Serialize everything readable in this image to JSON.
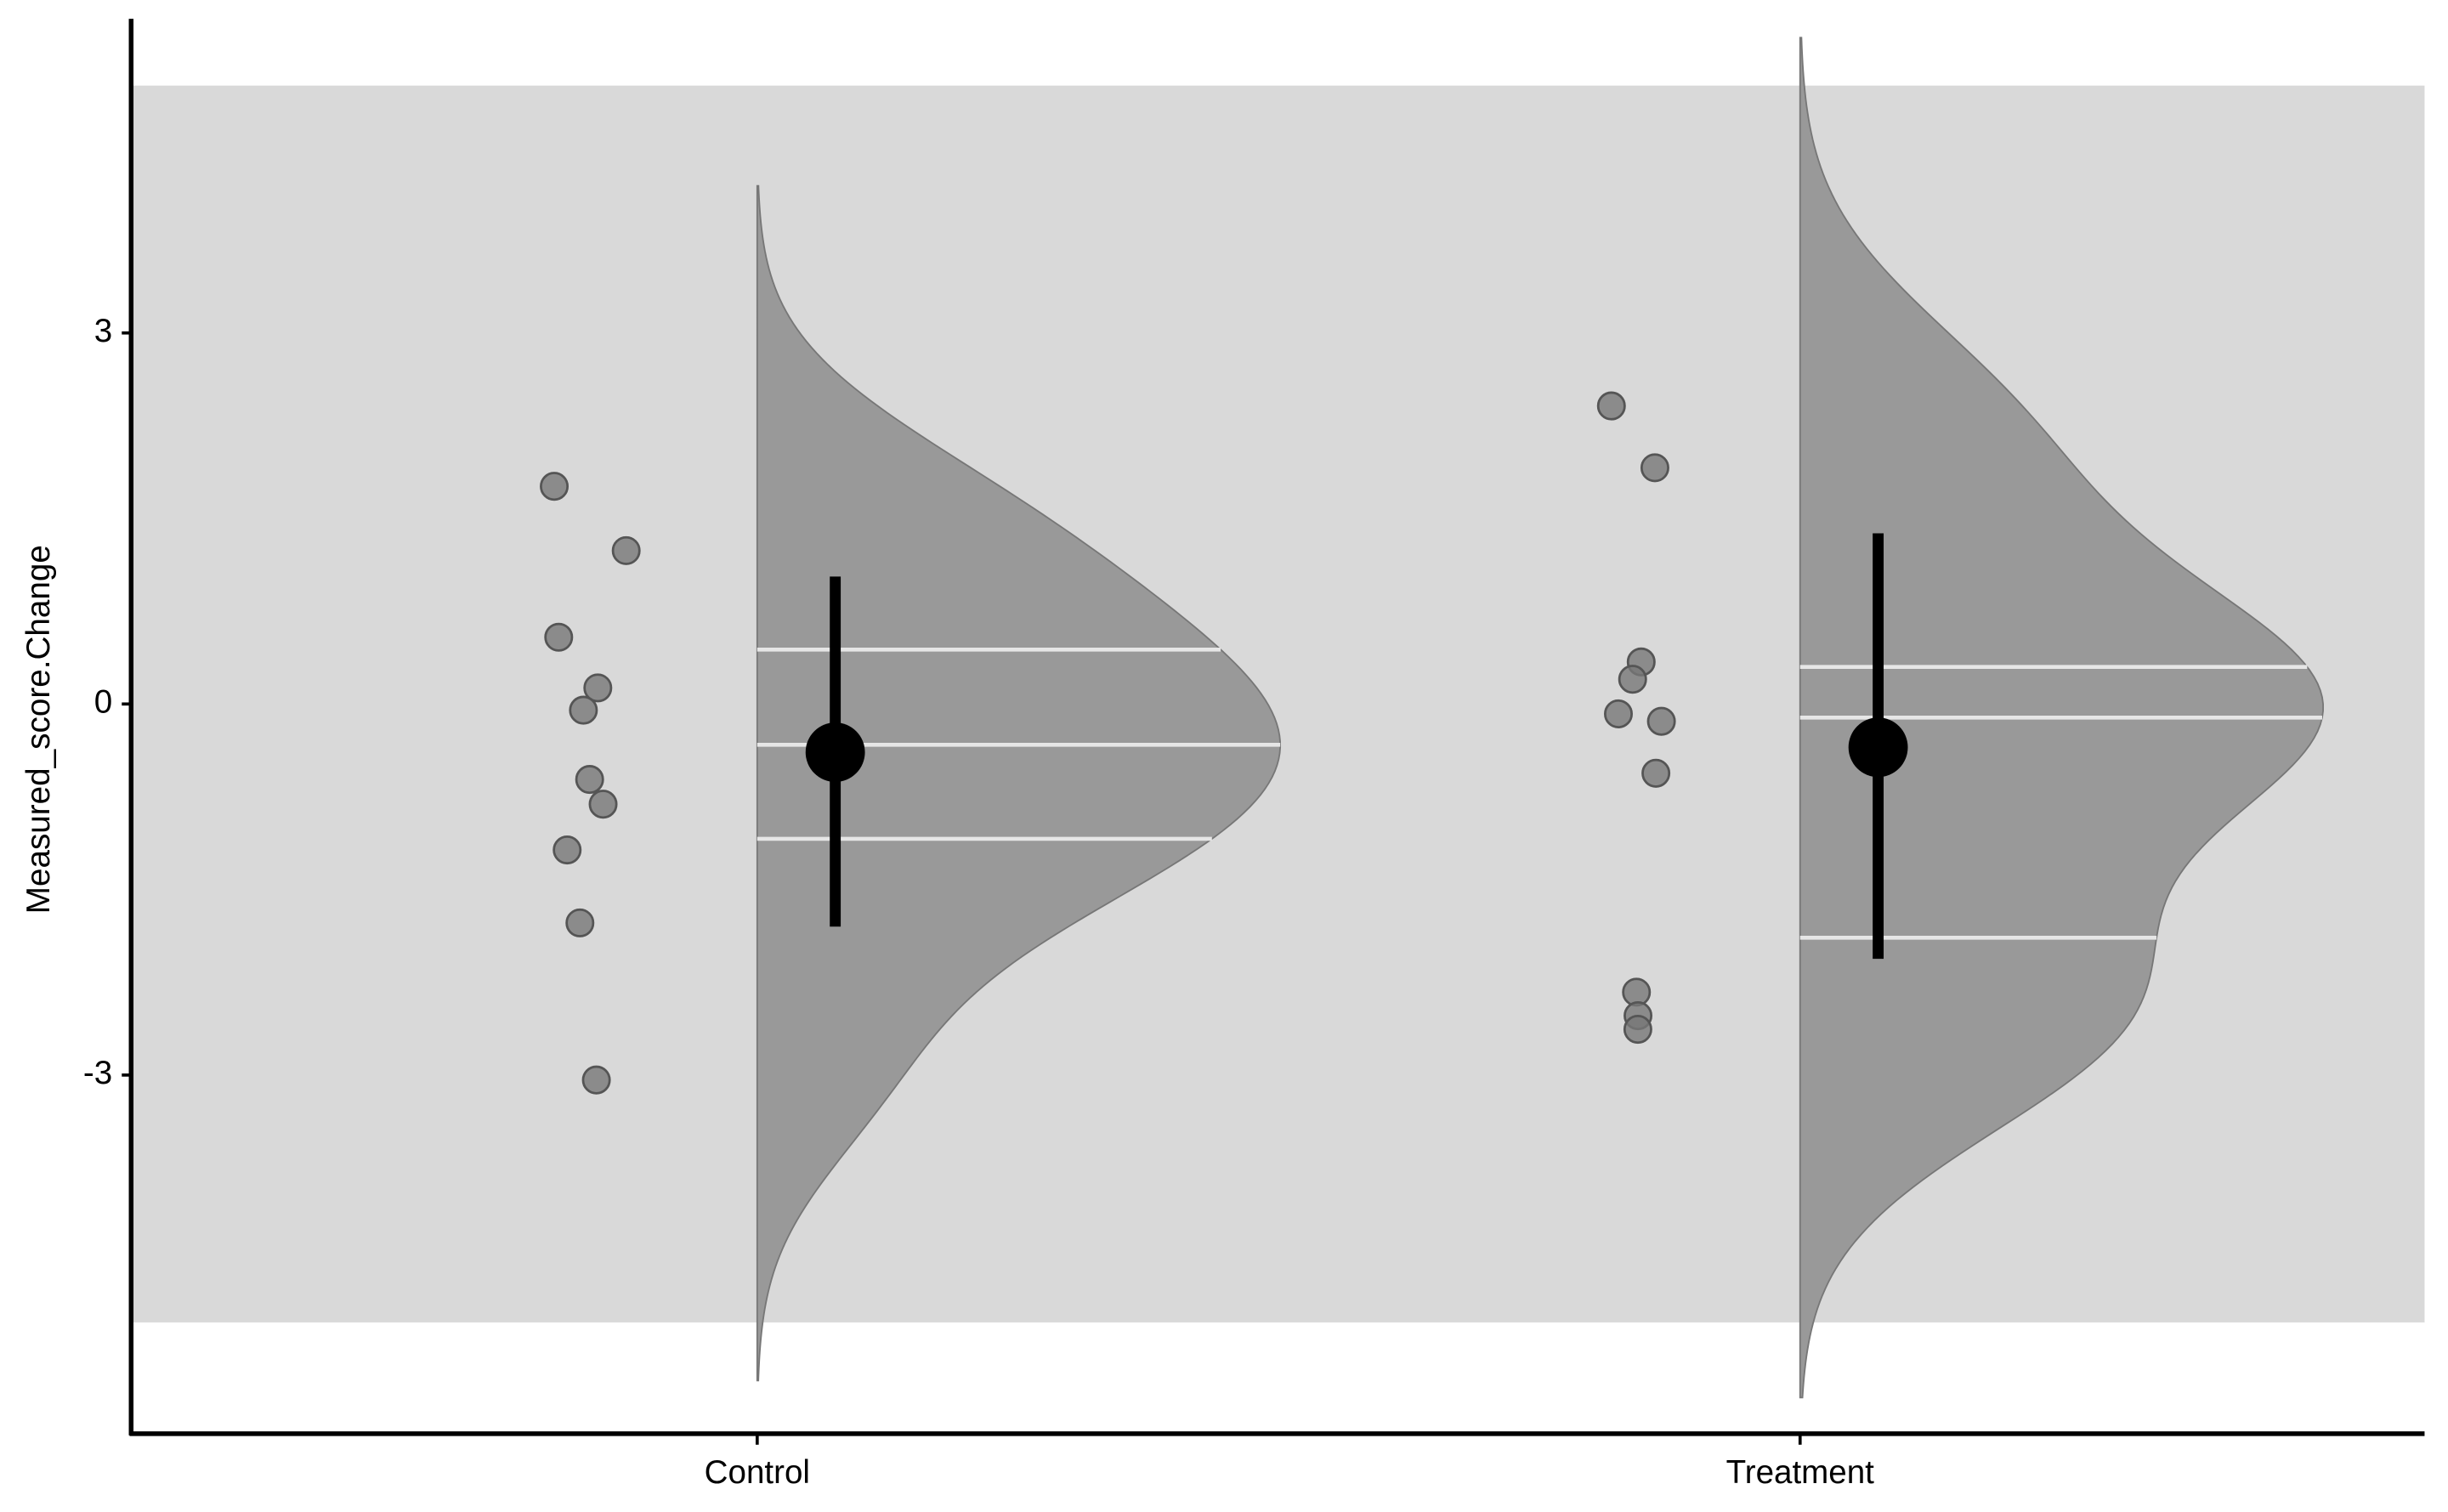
{
  "chart_data": {
    "type": "raincloud",
    "y_label": "Measured_score.Change",
    "categories": [
      "Control",
      "Treatment"
    ],
    "ylim": [
      -5.9,
      5.54
    ],
    "yticks": [
      -3,
      0,
      3
    ],
    "band": [
      -5,
      5
    ],
    "points": [
      [
        1.76,
        1.24,
        0.54,
        0.13,
        -0.05,
        -0.61,
        -0.81,
        -1.18,
        -1.77,
        -3.04
      ],
      [
        2.41,
        1.91,
        0.34,
        0.2,
        -0.08,
        -0.14,
        -0.56,
        -2.33,
        -2.52,
        -2.63
      ]
    ],
    "means": [
      -0.39,
      -0.35
    ],
    "error_low": [
      -1.8,
      -2.06
    ],
    "error_high": [
      1.03,
      1.38
    ],
    "quantiles": [
      [
        -1.09,
        -0.33,
        0.44
      ],
      [
        -1.89,
        -0.11,
        0.3
      ]
    ],
    "colors": {
      "band": "#d9d9d9",
      "density": "#999999",
      "points": "#777777",
      "mean": "#000000",
      "quantile": "#e6e6e6"
    }
  }
}
